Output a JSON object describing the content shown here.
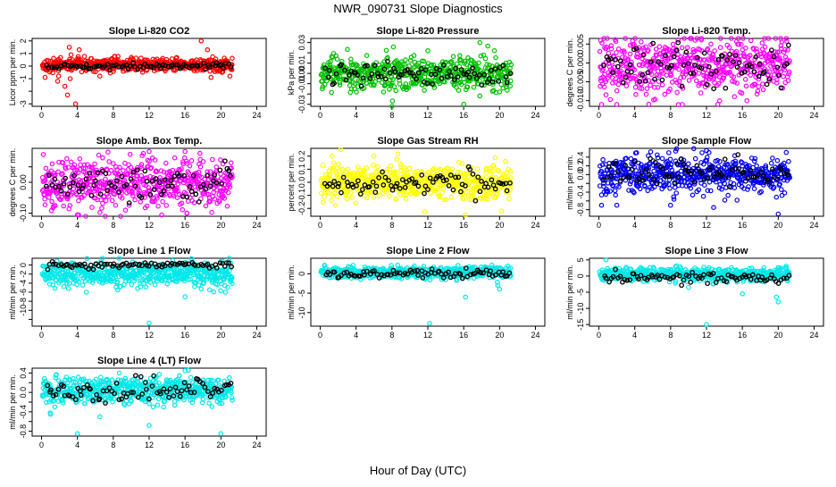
{
  "page_title": "NWR_090731  Slope Diagnostics",
  "x_axis_label": "Hour of Day (UTC)",
  "colors": {
    "black": "#000000",
    "frame": "#000000"
  },
  "chart_data": [
    {
      "type": "scatter",
      "title": "Slope Li-820 CO2",
      "ylabel": "Licor ppm per min.",
      "xlim": [
        0,
        24
      ],
      "xticks": [
        0,
        4,
        8,
        12,
        16,
        20,
        24
      ],
      "ylim": [
        -3.2,
        2.2
      ],
      "yticks": [
        -3,
        -2,
        -1,
        0,
        1,
        2
      ],
      "yticklabels": [
        "-3",
        "",
        "-1",
        "0",
        "1",
        "2"
      ],
      "color": "#ff0000",
      "center": 0.1,
      "spread": 0.25,
      "black_center": 0.0,
      "black_spread": 0.12,
      "outliers": [
        [
          1.8,
          -1.2
        ],
        [
          1.9,
          -0.8
        ],
        [
          2.6,
          -1.6
        ],
        [
          2.9,
          -2.3
        ],
        [
          3.2,
          -1.0
        ],
        [
          3.8,
          -3.0
        ],
        [
          3.1,
          1.5
        ],
        [
          4.2,
          1.3
        ],
        [
          3.3,
          0.9
        ],
        [
          17.8,
          2.0
        ],
        [
          18.5,
          1.3
        ],
        [
          18.9,
          -0.9
        ],
        [
          20.1,
          -0.5
        ],
        [
          21.0,
          -0.8
        ],
        [
          0.4,
          -0.9
        ],
        [
          6.5,
          -0.8
        ]
      ]
    },
    {
      "type": "scatter",
      "title": "Slope Li-820 Pressure",
      "ylabel": "kPa per min.",
      "xlim": [
        0,
        24
      ],
      "xticks": [
        0,
        4,
        8,
        12,
        16,
        20,
        24
      ],
      "ylim": [
        -0.032,
        0.034
      ],
      "yticks": [
        -0.03,
        -0.02,
        -0.01,
        0.0,
        0.01,
        0.02,
        0.03
      ],
      "yticklabels": [
        "-0.03",
        "",
        "-0.01",
        "0.00",
        "0.01",
        "",
        "0.03"
      ],
      "color": "#00c000",
      "center": 0.0,
      "spread": 0.008,
      "black_center": 0.0,
      "black_spread": 0.005,
      "outliers": [
        [
          0.3,
          -0.013
        ],
        [
          8.0,
          -0.032
        ],
        [
          16.0,
          -0.03
        ],
        [
          17.8,
          0.03
        ],
        [
          12.0,
          0.022
        ],
        [
          3.5,
          -0.015
        ],
        [
          20.0,
          -0.018
        ]
      ]
    },
    {
      "type": "scatter",
      "title": "Slope Li-820 Temp.",
      "ylabel": "degrees C per min.",
      "xlim": [
        0,
        24
      ],
      "xticks": [
        0,
        4,
        8,
        12,
        16,
        20,
        24
      ],
      "ylim": [
        -0.0115,
        0.0065
      ],
      "yticks": [
        -0.01,
        -0.005,
        0.0,
        0.005
      ],
      "yticklabels": [
        "-0.010",
        "-0.005",
        "0.000",
        "0.005"
      ],
      "color": "#ff00ff",
      "center": -0.001,
      "spread": 0.004,
      "black_center": -0.001,
      "black_spread": 0.003,
      "outliers": [
        [
          0.2,
          0.006
        ],
        [
          12.5,
          0.005
        ],
        [
          0.3,
          -0.011
        ],
        [
          2.0,
          -0.011
        ],
        [
          9.3,
          -0.011
        ],
        [
          16.5,
          -0.01
        ]
      ]
    },
    {
      "type": "scatter",
      "title": "Slope Amb. Box Temp.",
      "ylabel": "degrees C per min.",
      "xlim": [
        0,
        24
      ],
      "xticks": [
        0,
        4,
        8,
        12,
        16,
        20,
        24
      ],
      "ylim": [
        -0.11,
        0.11
      ],
      "yticks": [
        -0.1,
        -0.05,
        0.0,
        0.05
      ],
      "yticklabels": [
        "-0.10",
        "",
        "0.00",
        ""
      ],
      "color": "#ff00ff",
      "center": 0.0,
      "spread": 0.04,
      "black_center": 0.0,
      "black_spread": 0.03,
      "outliers": [
        [
          4.0,
          -0.105
        ],
        [
          16.2,
          -0.1
        ],
        [
          12.0,
          0.1
        ],
        [
          16.0,
          0.1
        ],
        [
          0.2,
          0.09
        ]
      ]
    },
    {
      "type": "scatter",
      "title": "Slope Gas Stream RH",
      "ylabel": "percent per min.",
      "xlim": [
        0,
        24
      ],
      "xticks": [
        0,
        4,
        8,
        12,
        16,
        20,
        24
      ],
      "ylim": [
        -0.26,
        0.26
      ],
      "yticks": [
        -0.2,
        -0.1,
        0.0,
        0.1,
        0.2
      ],
      "yticklabels": [
        "-0.2",
        "-0.1",
        "0.0",
        "0.1",
        "0.2"
      ],
      "color": "#ffff00",
      "center": 0.0,
      "spread": 0.07,
      "black_center": 0.0,
      "black_spread": 0.05,
      "outliers": [
        [
          2.3,
          0.25
        ],
        [
          16.2,
          -0.25
        ],
        [
          20.2,
          -0.22
        ],
        [
          6.0,
          0.2
        ]
      ]
    },
    {
      "type": "scatter",
      "title": "Slope Sample Flow",
      "ylabel": "ml/min per min.",
      "xlim": [
        0,
        24
      ],
      "xticks": [
        0,
        4,
        8,
        12,
        16,
        20,
        24
      ],
      "ylim": [
        -0.95,
        0.6
      ],
      "yticks": [
        -0.8,
        -0.6,
        -0.4,
        -0.2,
        0.0,
        0.2,
        0.4
      ],
      "yticklabels": [
        "-0.8",
        "",
        "-0.4",
        "",
        "0.0",
        "0.2",
        "0.4"
      ],
      "color": "#0000ff",
      "center": 0.0,
      "spread": 0.2,
      "black_center": 0.05,
      "black_spread": 0.15,
      "outliers": [
        [
          4.2,
          0.5
        ],
        [
          6.5,
          0.45
        ],
        [
          7.8,
          0.5
        ],
        [
          11.5,
          0.5
        ],
        [
          12.0,
          0.55
        ],
        [
          2.0,
          -0.7
        ],
        [
          8.0,
          -0.7
        ],
        [
          12.8,
          -0.75
        ],
        [
          20.0,
          -0.9
        ],
        [
          0.3,
          -0.7
        ]
      ]
    },
    {
      "type": "scatter",
      "title": "Slope Line 1 Flow",
      "ylabel": "ml/min per min.",
      "xlim": [
        0,
        24
      ],
      "xticks": [
        0,
        4,
        8,
        12,
        16,
        20,
        24
      ],
      "ylim": [
        -13.5,
        1.5
      ],
      "yticks": [
        -12,
        -10,
        -8,
        -6,
        -4,
        -2,
        0
      ],
      "yticklabels": [
        "",
        "-10",
        "-8",
        "-6",
        "-4",
        "-2",
        "0"
      ],
      "color": "#00e8e8",
      "center": -2.0,
      "spread": 1.3,
      "black_center": 0.0,
      "black_spread": 0.4,
      "outliers": [
        [
          12.0,
          -12.8
        ],
        [
          16.0,
          -7.0
        ],
        [
          5.0,
          -6.0
        ],
        [
          8.5,
          -5.5
        ],
        [
          20.5,
          -6.0
        ],
        [
          3.0,
          -5.2
        ]
      ]
    },
    {
      "type": "scatter",
      "title": "Slope Line 2 Flow",
      "ylabel": "ml/min per min.",
      "xlim": [
        0,
        24
      ],
      "xticks": [
        0,
        4,
        8,
        12,
        16,
        20,
        24
      ],
      "ylim": [
        -13.5,
        4.0
      ],
      "yticks": [
        -10,
        -5,
        0
      ],
      "yticklabels": [
        "-10",
        "-5",
        "0"
      ],
      "color": "#00e8e8",
      "center": 0.3,
      "spread": 0.7,
      "black_center": 0.0,
      "black_spread": 0.6,
      "outliers": [
        [
          12.2,
          -12.8
        ],
        [
          16.2,
          -6.0
        ],
        [
          19.8,
          -3.0
        ],
        [
          20.0,
          -4.0
        ],
        [
          0.5,
          2.2
        ],
        [
          10.5,
          2.0
        ]
      ]
    },
    {
      "type": "scatter",
      "title": "Slope Line 3 Flow",
      "ylabel": "ml/min per min.",
      "xlim": [
        0,
        24
      ],
      "xticks": [
        0,
        4,
        8,
        12,
        16,
        20,
        24
      ],
      "ylim": [
        -15.5,
        5.5
      ],
      "yticks": [
        -15,
        -10,
        -5,
        0,
        5
      ],
      "yticklabels": [
        "-15",
        "-10",
        "-5",
        "0",
        "5"
      ],
      "color": "#00e8e8",
      "center": 0.5,
      "spread": 1.0,
      "black_center": -0.5,
      "black_spread": 0.9,
      "outliers": [
        [
          12.0,
          -15.0
        ],
        [
          16.0,
          -5.5
        ],
        [
          20.0,
          -8.0
        ],
        [
          19.8,
          -6.5
        ],
        [
          0.8,
          5.0
        ],
        [
          10.0,
          -3.5
        ]
      ]
    },
    {
      "type": "scatter",
      "title": "Slope Line 4 (LT) Flow",
      "ylabel": "ml/min per min.",
      "xlim": [
        0,
        24
      ],
      "xticks": [
        0,
        4,
        8,
        12,
        16,
        20,
        24
      ],
      "ylim": [
        -0.9,
        0.5
      ],
      "yticks": [
        -0.8,
        -0.6,
        -0.4,
        -0.2,
        0.0,
        0.2,
        0.4
      ],
      "yticklabels": [
        "-0.8",
        "",
        "-0.4",
        "",
        "0.0",
        "",
        "0.4"
      ],
      "color": "#00e8e8",
      "center": 0.05,
      "spread": 0.14,
      "black_center": 0.05,
      "black_spread": 0.12,
      "outliers": [
        [
          4.0,
          -0.85
        ],
        [
          12.0,
          -0.68
        ],
        [
          20.0,
          -0.85
        ],
        [
          16.0,
          0.45
        ],
        [
          1.0,
          -0.45
        ],
        [
          6.5,
          -0.5
        ]
      ]
    }
  ]
}
